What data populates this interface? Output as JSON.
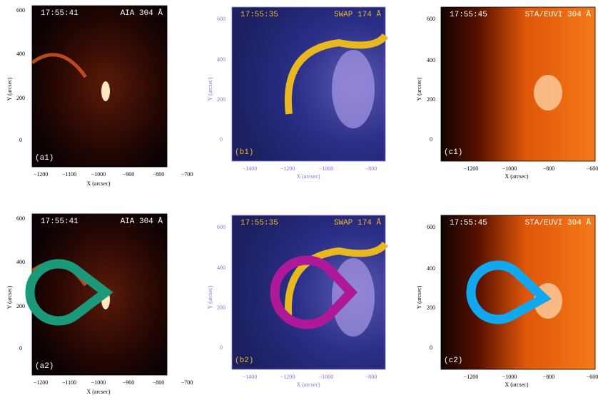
{
  "panels": [
    {
      "time": "17:55:41",
      "instrument": "AIA 304 Å",
      "label": "(a1)",
      "xticks": [
        "−1200",
        "−1100",
        "−1000",
        "−900",
        "−800",
        "−700"
      ],
      "yticks": [
        "600",
        "400",
        "200",
        "0"
      ],
      "xlabel": "X (arcsec)",
      "ylabel": "Y (arcsec)"
    },
    {
      "time": "17:55:35",
      "instrument": "SWAP 174 Å",
      "label": "(b1)",
      "xticks": [
        "−1400",
        "−1200",
        "−1000",
        "−800"
      ],
      "yticks": [
        "600",
        "400",
        "200",
        "0"
      ],
      "xlabel": "X (arcsec)",
      "ylabel": "Y (arcsec)"
    },
    {
      "time": "17:55:45",
      "instrument": "STA/EUVI 304 Å",
      "label": "(c1)",
      "xticks": [
        "−1200",
        "−1000",
        "−800",
        "−600"
      ],
      "yticks": [
        "600",
        "400",
        "200",
        "0"
      ],
      "xlabel": "X (arcsec)",
      "ylabel": "Y (arcsec)"
    },
    {
      "time": "17:55:41",
      "instrument": "AIA 304 Å",
      "label": "(a2)",
      "xticks": [
        "−1200",
        "−1100",
        "−1000",
        "−900",
        "−800",
        "−700"
      ],
      "yticks": [
        "600",
        "400",
        "200",
        "0"
      ],
      "xlabel": "X (arcsec)",
      "ylabel": "Y (arcsec)"
    },
    {
      "time": "17:55:35",
      "instrument": "SWAP 174 Å",
      "label": "(b2)",
      "xticks": [
        "−1400",
        "−1200",
        "−1000",
        "−800"
      ],
      "yticks": [
        "600",
        "400",
        "200",
        "0"
      ],
      "xlabel": "X (arcsec)",
      "ylabel": "Y (arcsec)"
    },
    {
      "time": "17:55:45",
      "instrument": "STA/EUVI 304 Å",
      "label": "(c2)",
      "xticks": [
        "−1200",
        "−1000",
        "−800",
        "−600"
      ],
      "yticks": [
        "600",
        "400",
        "200",
        "0"
      ],
      "xlabel": "X (arcsec)",
      "ylabel": "Y (arcsec)"
    }
  ]
}
